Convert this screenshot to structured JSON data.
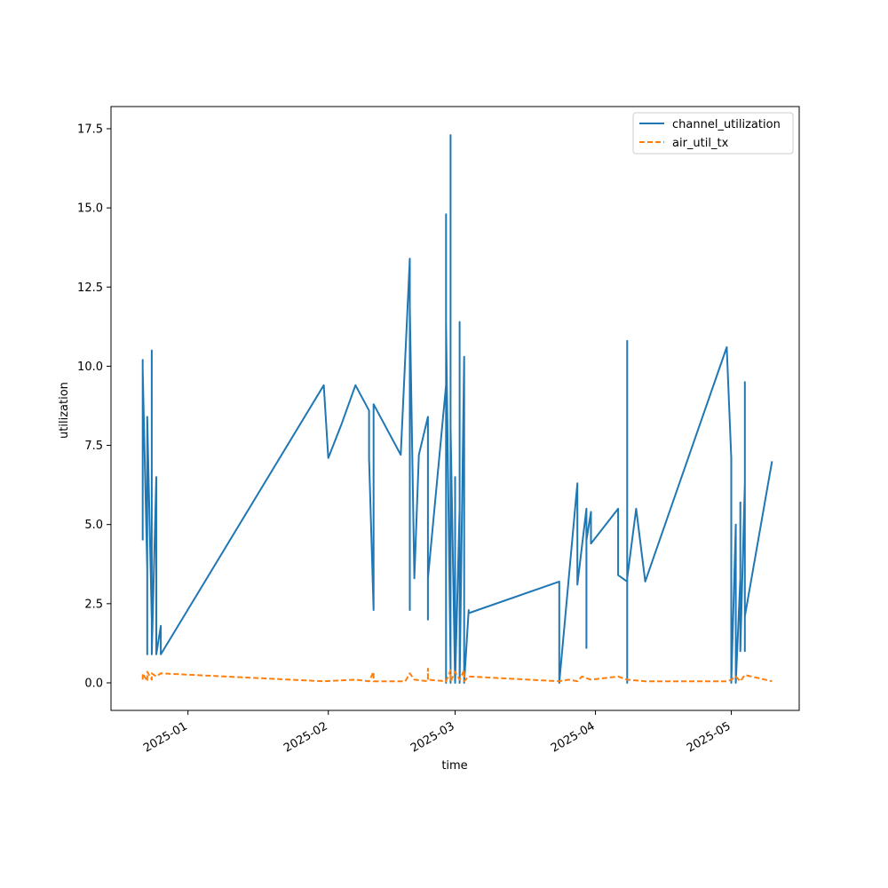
{
  "chart_data": {
    "type": "line",
    "title": "",
    "xlabel": "time",
    "ylabel": "utilization",
    "xlim": [
      "2024-12-15",
      "2025-05-16"
    ],
    "ylim": [
      -0.87,
      18.2
    ],
    "x_ticks": [
      "2025-01-01",
      "2025-02-01",
      "2025-03-01",
      "2025-04-01",
      "2025-05-01"
    ],
    "x_tick_labels": [
      "2025-01",
      "2025-02",
      "2025-03",
      "2025-04",
      "2025-05"
    ],
    "y_ticks": [
      0.0,
      2.5,
      5.0,
      7.5,
      10.0,
      12.5,
      15.0,
      17.5
    ],
    "y_tick_labels": [
      "0.0",
      "2.5",
      "5.0",
      "7.5",
      "10.0",
      "12.5",
      "15.0",
      "17.5"
    ],
    "legend_position": "top-right",
    "grid": false,
    "series": [
      {
        "name": "channel_utilization",
        "color": "#1f77b4",
        "style": "solid",
        "points": [
          [
            "2024-12-22",
            4.5
          ],
          [
            "2024-12-22",
            10.2
          ],
          [
            "2024-12-22",
            5.0
          ],
          [
            "2024-12-22",
            9.9
          ],
          [
            "2024-12-23",
            3.6
          ],
          [
            "2024-12-23",
            7.7
          ],
          [
            "2024-12-23",
            0.9
          ],
          [
            "2024-12-23",
            4.9
          ],
          [
            "2024-12-23",
            1.7
          ],
          [
            "2024-12-23",
            8.4
          ],
          [
            "2024-12-24",
            2.0
          ],
          [
            "2024-12-24",
            9.2
          ],
          [
            "2024-12-24",
            1.0
          ],
          [
            "2024-12-24",
            10.5
          ],
          [
            "2024-12-24",
            0.9
          ],
          [
            "2024-12-25",
            6.5
          ],
          [
            "2024-12-25",
            1.0
          ],
          [
            "2024-12-25",
            2.5
          ],
          [
            "2024-12-25",
            0.9
          ],
          [
            "2024-12-26",
            1.8
          ],
          [
            "2024-12-26",
            0.9
          ],
          [
            "2025-01-31",
            9.4
          ],
          [
            "2025-02-01",
            7.1
          ],
          [
            "2025-02-04",
            8.2
          ],
          [
            "2025-02-07",
            9.4
          ],
          [
            "2025-02-10",
            8.6
          ],
          [
            "2025-02-10",
            7.1
          ],
          [
            "2025-02-11",
            2.3
          ],
          [
            "2025-02-11",
            8.8
          ],
          [
            "2025-02-17",
            7.2
          ],
          [
            "2025-02-19",
            13.4
          ],
          [
            "2025-02-19",
            2.3
          ],
          [
            "2025-02-19",
            11.9
          ],
          [
            "2025-02-20",
            3.3
          ],
          [
            "2025-02-21",
            7.2
          ],
          [
            "2025-02-23",
            8.4
          ],
          [
            "2025-02-23",
            2.0
          ],
          [
            "2025-02-23",
            3.3
          ],
          [
            "2025-02-27",
            9.4
          ],
          [
            "2025-02-27",
            2.3
          ],
          [
            "2025-02-27",
            14.8
          ],
          [
            "2025-02-27",
            0.0
          ],
          [
            "2025-02-27",
            11.4
          ],
          [
            "2025-02-28",
            0.5
          ],
          [
            "2025-02-28",
            15.2
          ],
          [
            "2025-02-28",
            0.0
          ],
          [
            "2025-02-28",
            17.3
          ],
          [
            "2025-02-28",
            0.3
          ],
          [
            "2025-02-28",
            11.9
          ],
          [
            "2025-02-28",
            0.0
          ],
          [
            "2025-02-28",
            8.1
          ],
          [
            "2025-03-01",
            0.0
          ],
          [
            "2025-03-01",
            6.5
          ],
          [
            "2025-03-01",
            0.0
          ],
          [
            "2025-03-01",
            5.5
          ],
          [
            "2025-03-01",
            0.0
          ],
          [
            "2025-03-02",
            5.5
          ],
          [
            "2025-03-02",
            0.0
          ],
          [
            "2025-03-02",
            11.4
          ],
          [
            "2025-03-02",
            0.0
          ],
          [
            "2025-03-03",
            10.3
          ],
          [
            "2025-03-03",
            0.0
          ],
          [
            "2025-03-03",
            3.4
          ],
          [
            "2025-03-03",
            0.0
          ],
          [
            "2025-03-04",
            2.3
          ],
          [
            "2025-03-04",
            2.2
          ],
          [
            "2025-03-24",
            3.2
          ],
          [
            "2025-03-24",
            0.0
          ],
          [
            "2025-03-28",
            6.3
          ],
          [
            "2025-03-28",
            3.1
          ],
          [
            "2025-03-28",
            6.3
          ],
          [
            "2025-03-28",
            3.1
          ],
          [
            "2025-03-30",
            5.5
          ],
          [
            "2025-03-30",
            1.1
          ],
          [
            "2025-03-30",
            4.5
          ],
          [
            "2025-03-31",
            5.4
          ],
          [
            "2025-03-31",
            4.4
          ],
          [
            "2025-04-06",
            5.5
          ],
          [
            "2025-04-06",
            3.4
          ],
          [
            "2025-04-08",
            3.2
          ],
          [
            "2025-04-08",
            10.8
          ],
          [
            "2025-04-08",
            0.0
          ],
          [
            "2025-04-08",
            3.3
          ],
          [
            "2025-04-10",
            5.5
          ],
          [
            "2025-04-12",
            3.2
          ],
          [
            "2025-04-30",
            10.6
          ],
          [
            "2025-05-01",
            7.1
          ],
          [
            "2025-05-01",
            0.0
          ],
          [
            "2025-05-02",
            5.0
          ],
          [
            "2025-05-02",
            0.0
          ],
          [
            "2025-05-03",
            3.3
          ],
          [
            "2025-05-03",
            5.7
          ],
          [
            "2025-05-03",
            1.0
          ],
          [
            "2025-05-04",
            6.3
          ],
          [
            "2025-05-04",
            1.0
          ],
          [
            "2025-05-04",
            6.5
          ],
          [
            "2025-05-04",
            1.0
          ],
          [
            "2025-05-04",
            9.5
          ],
          [
            "2025-05-04",
            2.1
          ],
          [
            "2025-05-10",
            7.0
          ]
        ]
      },
      {
        "name": "air_util_tx",
        "color": "#ff7f0e",
        "style": "dashed",
        "points": [
          [
            "2024-12-22",
            0.1
          ],
          [
            "2024-12-22",
            0.3
          ],
          [
            "2024-12-23",
            0.05
          ],
          [
            "2024-12-23",
            0.35
          ],
          [
            "2024-12-24",
            0.1
          ],
          [
            "2024-12-24",
            0.3
          ],
          [
            "2024-12-25",
            0.2
          ],
          [
            "2024-12-26",
            0.3
          ],
          [
            "2025-01-31",
            0.05
          ],
          [
            "2025-02-07",
            0.1
          ],
          [
            "2025-02-10",
            0.05
          ],
          [
            "2025-02-11",
            0.35
          ],
          [
            "2025-02-11",
            0.05
          ],
          [
            "2025-02-18",
            0.05
          ],
          [
            "2025-02-19",
            0.3
          ],
          [
            "2025-02-20",
            0.1
          ],
          [
            "2025-02-23",
            0.05
          ],
          [
            "2025-02-23",
            0.45
          ],
          [
            "2025-02-23",
            0.1
          ],
          [
            "2025-02-27",
            0.05
          ],
          [
            "2025-02-28",
            0.4
          ],
          [
            "2025-02-28",
            0.05
          ],
          [
            "2025-03-01",
            0.35
          ],
          [
            "2025-03-02",
            0.1
          ],
          [
            "2025-03-03",
            0.4
          ],
          [
            "2025-03-03",
            0.05
          ],
          [
            "2025-03-04",
            0.2
          ],
          [
            "2025-03-24",
            0.05
          ],
          [
            "2025-03-26",
            0.1
          ],
          [
            "2025-03-28",
            0.05
          ],
          [
            "2025-03-29",
            0.2
          ],
          [
            "2025-03-31",
            0.1
          ],
          [
            "2025-04-06",
            0.2
          ],
          [
            "2025-04-08",
            0.1
          ],
          [
            "2025-04-12",
            0.05
          ],
          [
            "2025-04-30",
            0.05
          ],
          [
            "2025-05-01",
            0.1
          ],
          [
            "2025-05-02",
            0.2
          ],
          [
            "2025-05-03",
            0.05
          ],
          [
            "2025-05-04",
            0.25
          ],
          [
            "2025-05-10",
            0.05
          ]
        ]
      }
    ]
  }
}
